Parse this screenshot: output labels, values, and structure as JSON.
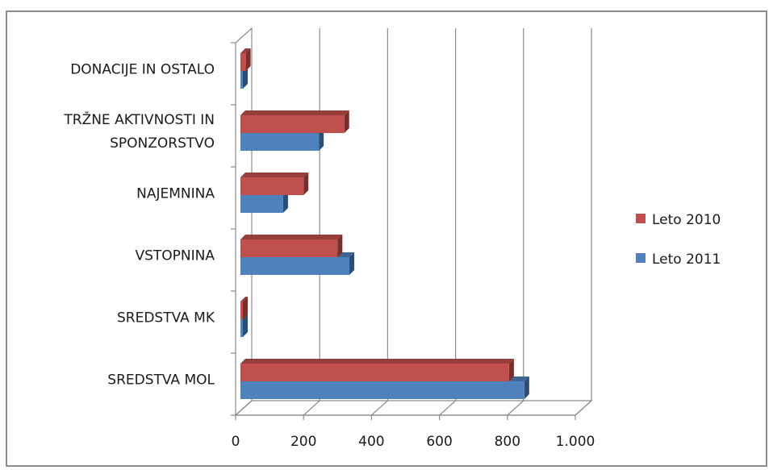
{
  "chart_data": {
    "type": "bar",
    "orientation": "horizontal",
    "style": "3d-clustered",
    "title": "",
    "xlabel": "",
    "ylabel": "",
    "xlim": [
      0,
      1000
    ],
    "x_ticks": [
      0,
      200,
      400,
      600,
      800,
      1000
    ],
    "x_tick_labels": [
      "0",
      "200",
      "400",
      "600",
      "800",
      "1.000"
    ],
    "grid": true,
    "legend_position": "right",
    "categories": [
      [
        "SREDSTVA MOL"
      ],
      [
        "SREDSTVA MK"
      ],
      [
        "VSTOPNINA"
      ],
      [
        "NAJEMNINA"
      ],
      [
        "TRŽNE AKTIVNOSTI IN",
        "SPONZORSTVO"
      ],
      [
        "DONACIJE IN OSTALO"
      ]
    ],
    "series": [
      {
        "name": "Leto 2010",
        "color": "#c0504d",
        "values": [
          805,
          5,
          300,
          200,
          320,
          30
        ]
      },
      {
        "name": "Leto 2011",
        "color": "#4f81bd",
        "values": [
          850,
          15,
          335,
          140,
          245,
          15
        ]
      }
    ]
  }
}
